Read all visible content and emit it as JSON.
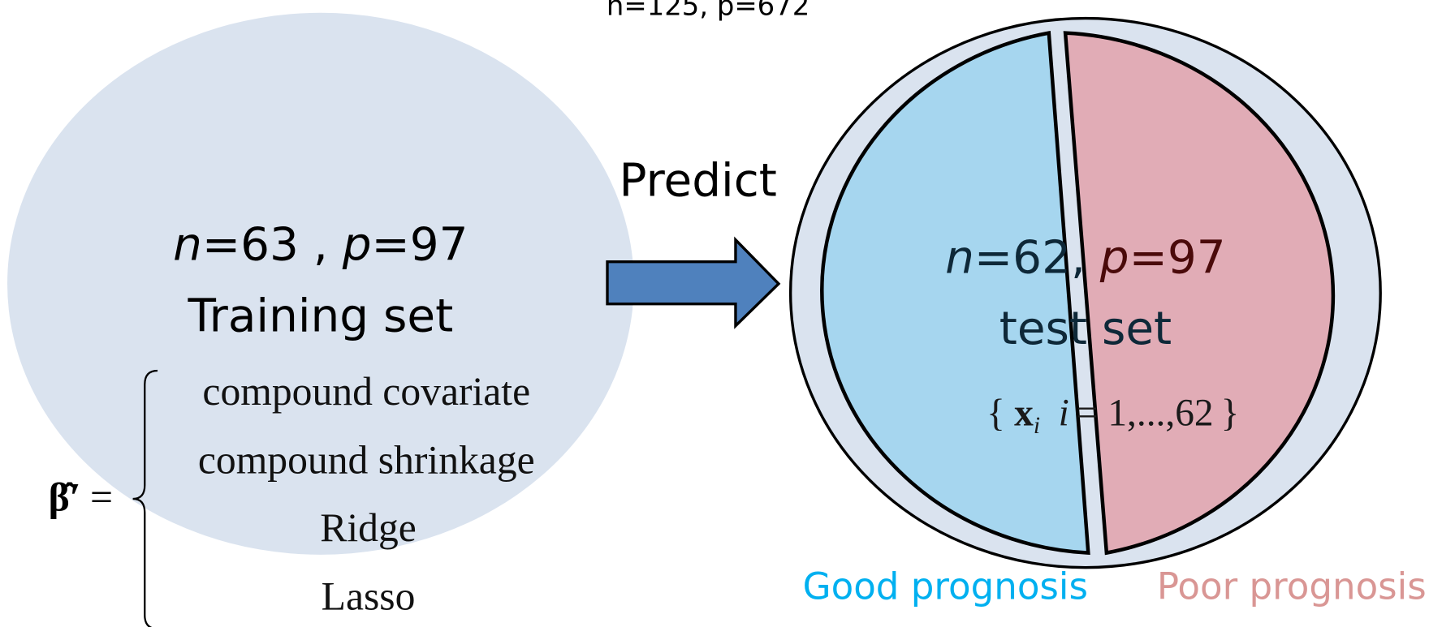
{
  "header": {
    "title": "n=125, p=672"
  },
  "training": {
    "stats": [
      "n",
      "=63 , ",
      "p",
      "=97"
    ],
    "label": "Training set",
    "estimator": {
      "symbol": "β̂′",
      "equals": "=",
      "methods": [
        "compound covariate",
        "compound shrinkage",
        "Ridge",
        "Lasso"
      ]
    }
  },
  "arrow": {
    "label": "Predict"
  },
  "test": {
    "stats": [
      "n",
      "=62, ",
      "p",
      "=97"
    ],
    "label": "test set",
    "formula": [
      "{",
      "x",
      "i",
      "i",
      "= 1,...,62",
      "}"
    ],
    "groups": [
      "Good prognosis",
      "Poor prognosis"
    ]
  }
}
